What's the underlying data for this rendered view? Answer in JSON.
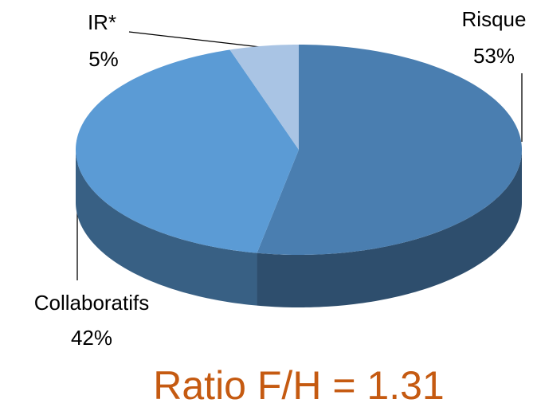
{
  "chart_data": {
    "type": "pie",
    "categories": [
      "Risque",
      "Collaboratifs",
      "IR*"
    ],
    "values": [
      53,
      42,
      5
    ],
    "value_labels": [
      "53%",
      "42%",
      "5%"
    ],
    "colors": [
      "#4a7eb0",
      "#5b9bd5",
      "#a9c4e4"
    ],
    "annotation": "Ratio F/H = 1.31"
  }
}
